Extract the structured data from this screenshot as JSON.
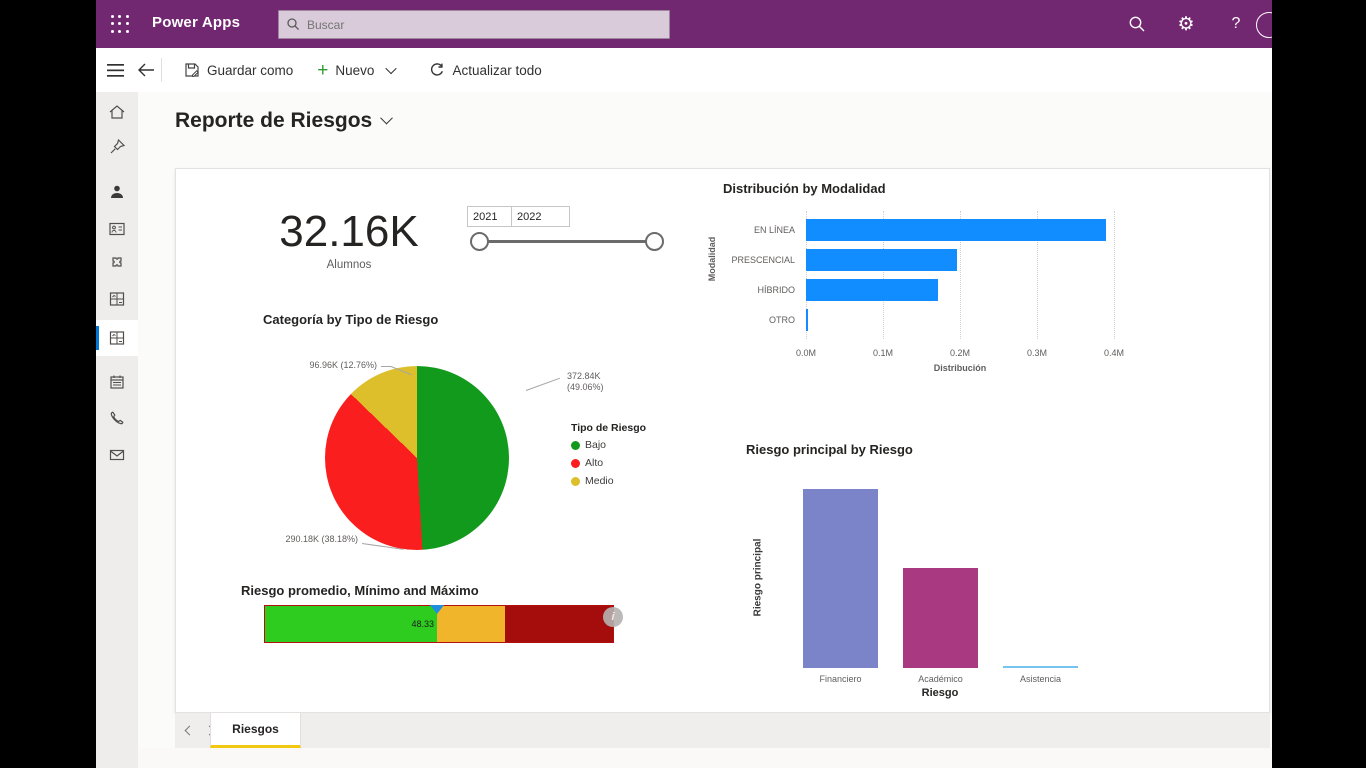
{
  "topbar": {
    "app_name": "Power Apps",
    "search_placeholder": "Buscar"
  },
  "toolbar": {
    "save_as": "Guardar como",
    "new": "Nuevo",
    "refresh": "Actualizar todo"
  },
  "page": {
    "title": "Reporte de Riesgos"
  },
  "sidebar": {
    "items": [
      "home",
      "pin",
      "people",
      "contact-card",
      "puzzle",
      "dashboard",
      "dashboard",
      "calendar",
      "phone",
      "mail"
    ],
    "active_index": 6
  },
  "tabs": {
    "active": "Riesgos"
  },
  "colors": {
    "brand_purple": "#722771",
    "accent_blue": "#0078D4",
    "tab_underline": "#F2C811"
  },
  "chart_data": [
    {
      "type": "card",
      "value": "32.16K",
      "label": "Alumnos"
    },
    {
      "type": "range-slider",
      "start": "2021",
      "end": "2022"
    },
    {
      "type": "bar",
      "orientation": "horizontal",
      "title": "Distribución by Modalidad",
      "ylabel": "Modalidad",
      "xlabel": "Distribución",
      "categories": [
        "EN LÍNEA",
        "PRESCENCIAL",
        "HÍBRIDO",
        "OTRO"
      ],
      "values_millions": [
        0.39,
        0.196,
        0.172,
        0.002
      ],
      "x_ticks": [
        "0.0M",
        "0.1M",
        "0.2M",
        "0.3M",
        "0.4M"
      ],
      "xmax_millions": 0.4,
      "bar_color": "#118DFF",
      "grid": "dotted-vertical"
    },
    {
      "type": "pie",
      "title": "Categoría by Tipo de Riesgo",
      "legend_title": "Tipo de Riesgo",
      "legend_position": "right",
      "start_angle_deg": 0,
      "slices": [
        {
          "label": "Bajo",
          "color": "#129A1C",
          "pct": 49.06,
          "callout": "372.84K (49.06%)"
        },
        {
          "label": "Alto",
          "color": "#FA1E1E",
          "pct": 38.18,
          "callout": "290.18K (38.18%)"
        },
        {
          "label": "Medio",
          "color": "#DDBF2B",
          "pct": 12.76,
          "callout": "96.96K (12.76%)"
        }
      ]
    },
    {
      "type": "gauge",
      "title": "Riesgo promedio, Mínimo and Máximo",
      "value": "48.33",
      "value_num": 48.33,
      "min": 0,
      "max": 100,
      "segments": [
        {
          "name": "green",
          "color": "#2ECC1E",
          "pct": 49.4
        },
        {
          "name": "yellow",
          "color": "#F0B52A",
          "pct": 19.7
        },
        {
          "name": "dark-red",
          "color": "#A50D0D",
          "pct": 30.9
        }
      ],
      "pointer_color": "#1E8FE0",
      "info_icon": "i"
    },
    {
      "type": "column",
      "title": "Riesgo principal by Riesgo",
      "xlabel": "Riesgo",
      "ylabel": "Riesgo principal",
      "categories": [
        "Financiero",
        "Académico",
        "Asistencia"
      ],
      "relative_values": [
        1.0,
        0.56,
        0.01
      ],
      "colors": [
        "#7B83C9",
        "#A93A82",
        "#75C3EF"
      ]
    }
  ]
}
